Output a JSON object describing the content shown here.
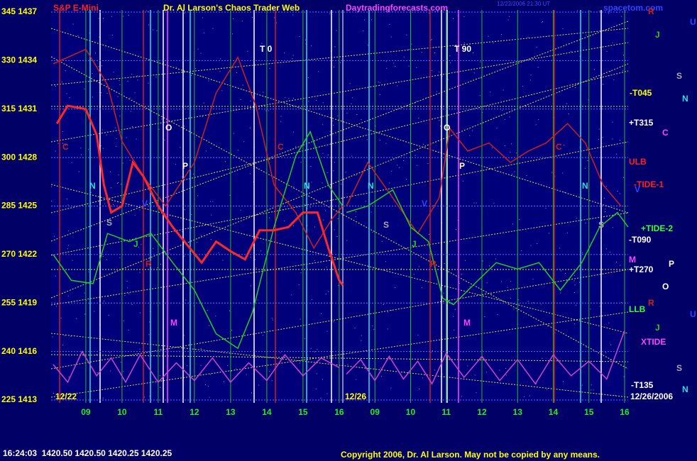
{
  "header": {
    "instrument": "S&P E-Mini",
    "title": "Dr. Al Larson's Chaos Trader Web",
    "site": "Daytradingforecasts.com",
    "timestamp": "12/22/2006 21:30 UT",
    "site2": "spacetom.com"
  },
  "chart_data": [
    {
      "type": "line",
      "start_label": "12/22",
      "xlim": [
        8.1,
        16.1
      ],
      "ylim": [
        1413,
        1437
      ],
      "yticks": [
        {
          "value": 1413,
          "label": "225 1413"
        },
        {
          "value": 1416,
          "label": "240 1416"
        },
        {
          "value": 1419,
          "label": "255 1419"
        },
        {
          "value": 1422,
          "label": "270 1422"
        },
        {
          "value": 1425,
          "label": "285 1425"
        },
        {
          "value": 1428,
          "label": "300 1428"
        },
        {
          "value": 1431,
          "label": "315 1431"
        },
        {
          "value": 1434,
          "label": "330 1434"
        },
        {
          "value": 1437,
          "label": "345 1437"
        }
      ],
      "xticks": [
        {
          "value": 9,
          "label": "09"
        },
        10,
        11,
        12,
        13,
        14,
        15,
        16
      ],
      "grid": true,
      "annotations": [
        "T 0",
        "O",
        "P",
        "C",
        "C",
        "N",
        "N",
        "M",
        "S",
        "J",
        "R",
        "V"
      ],
      "series": [
        {
          "color": "#cc2020",
          "x": [
            8.1,
            9.0,
            9.6,
            10.0,
            10.6,
            11.2,
            12.0,
            12.6,
            13.2,
            13.7,
            14.2,
            14.8,
            15.3,
            15.8,
            16.1
          ],
          "values": [
            1433.8,
            1434.7,
            1432.5,
            1429.0,
            1426.8,
            1425.0,
            1427.7,
            1432.0,
            1434.2,
            1431.2,
            1426.3,
            1424.6,
            1422.4,
            1424.2,
            1425.0
          ]
        },
        {
          "color": "#22cc22",
          "x": [
            8.1,
            8.6,
            9.2,
            9.6,
            10.2,
            10.8,
            11.4,
            12.0,
            12.6,
            13.2,
            13.6,
            14.2,
            14.8,
            15.2,
            15.7,
            16.1
          ],
          "values": [
            1422.0,
            1420.4,
            1420.2,
            1423.3,
            1422.8,
            1423.3,
            1421.5,
            1419.8,
            1417.1,
            1416.2,
            1418.4,
            1423.7,
            1428.1,
            1429.6,
            1426.3,
            1425.0
          ]
        },
        {
          "color": "#cc44cc",
          "x": [
            8.1,
            8.5,
            8.9,
            9.3,
            9.7,
            10.1,
            10.5,
            11.0,
            11.5,
            12.0,
            12.5,
            13.0,
            13.5,
            14.0,
            14.5,
            15.0,
            15.5,
            16.0
          ],
          "values": [
            1415.2,
            1414.1,
            1416.0,
            1414.5,
            1415.6,
            1414.1,
            1415.8,
            1414.1,
            1415.3,
            1414.2,
            1415.6,
            1414.1,
            1415.3,
            1414.2,
            1415.8,
            1414.5,
            1415.6,
            1415.0
          ]
        },
        {
          "color": "#ff2828",
          "x": [
            8.2,
            8.5,
            9.0,
            9.3,
            9.5,
            9.7,
            10.0,
            10.3,
            10.6,
            11.0,
            11.4,
            11.8,
            12.2,
            12.6,
            13.0,
            13.4,
            13.8,
            14.2,
            14.6,
            15.0,
            15.4,
            15.7,
            16.0,
            16.1
          ],
          "values": [
            1430.1,
            1431.2,
            1431.0,
            1429.4,
            1426.3,
            1424.6,
            1425.0,
            1427.7,
            1426.8,
            1425.0,
            1423.7,
            1422.6,
            1421.5,
            1422.8,
            1422.2,
            1421.7,
            1423.5,
            1423.5,
            1423.7,
            1424.6,
            1424.6,
            1422.4,
            1420.4,
            1420.1
          ]
        }
      ]
    },
    {
      "type": "line",
      "start_label": "12/26",
      "end_label": "12/26/2006",
      "xlim": [
        8.1,
        16.1
      ],
      "ylim": [
        1413,
        1437
      ],
      "xticks": [
        {
          "value": 9,
          "label": "09"
        },
        10,
        11,
        12,
        13,
        14,
        15,
        16
      ],
      "grid": true,
      "annotations": [
        "T 90",
        "O",
        "P",
        "C",
        "N",
        "N",
        "S",
        "S",
        "M",
        "J",
        "R",
        "V"
      ],
      "series": [
        {
          "color": "#cc2020",
          "x": [
            8.2,
            8.8,
            9.5,
            10.2,
            10.8,
            11.1,
            11.6,
            12.2,
            12.8,
            13.3,
            13.8,
            14.4,
            14.9,
            15.4,
            15.9
          ],
          "values": [
            1425.0,
            1427.7,
            1425.5,
            1423.3,
            1425.5,
            1429.8,
            1428.4,
            1428.9,
            1427.7,
            1428.4,
            1428.9,
            1430.1,
            1428.9,
            1426.3,
            1425.0
          ]
        },
        {
          "color": "#22cc22",
          "x": [
            8.2,
            8.8,
            9.5,
            10.0,
            10.5,
            10.9,
            11.2,
            11.8,
            12.4,
            13.0,
            13.6,
            14.2,
            14.8,
            15.3,
            15.8,
            16.1
          ],
          "values": [
            1424.6,
            1425.0,
            1426.0,
            1423.7,
            1422.8,
            1419.3,
            1418.9,
            1420.2,
            1421.5,
            1421.1,
            1421.5,
            1419.8,
            1421.5,
            1423.7,
            1424.6,
            1423.7
          ]
        },
        {
          "color": "#cc44cc",
          "x": [
            8.2,
            8.6,
            9.0,
            9.4,
            9.8,
            10.2,
            10.6,
            11.0,
            11.5,
            12.0,
            12.5,
            13.0,
            13.5,
            14.0,
            14.5,
            15.0,
            15.5,
            16.0
          ],
          "values": [
            1414.6,
            1415.5,
            1414.2,
            1415.7,
            1414.3,
            1415.4,
            1414.0,
            1415.9,
            1414.4,
            1415.7,
            1414.2,
            1415.5,
            1414.0,
            1415.8,
            1414.5,
            1415.4,
            1414.3,
            1417.3
          ]
        }
      ]
    }
  ],
  "right_labels": [
    "-T045",
    "+T315",
    "ULB",
    "-TIDE-1",
    "+TIDE-2",
    "-T090",
    "M",
    "+T270",
    "LLB",
    "XTIDE",
    "-T135"
  ],
  "planet_labels": [
    "R",
    "U",
    "J",
    "S",
    "N",
    "C",
    "V",
    "P",
    "O",
    "R",
    "U",
    "J",
    "S",
    "N"
  ],
  "footer": {
    "quote": "16:24:03  1420.50 1420.50 1420.25 1420.25",
    "copyright": "Copyright 2006, Dr. Al Larson. May not be copied by any means."
  }
}
